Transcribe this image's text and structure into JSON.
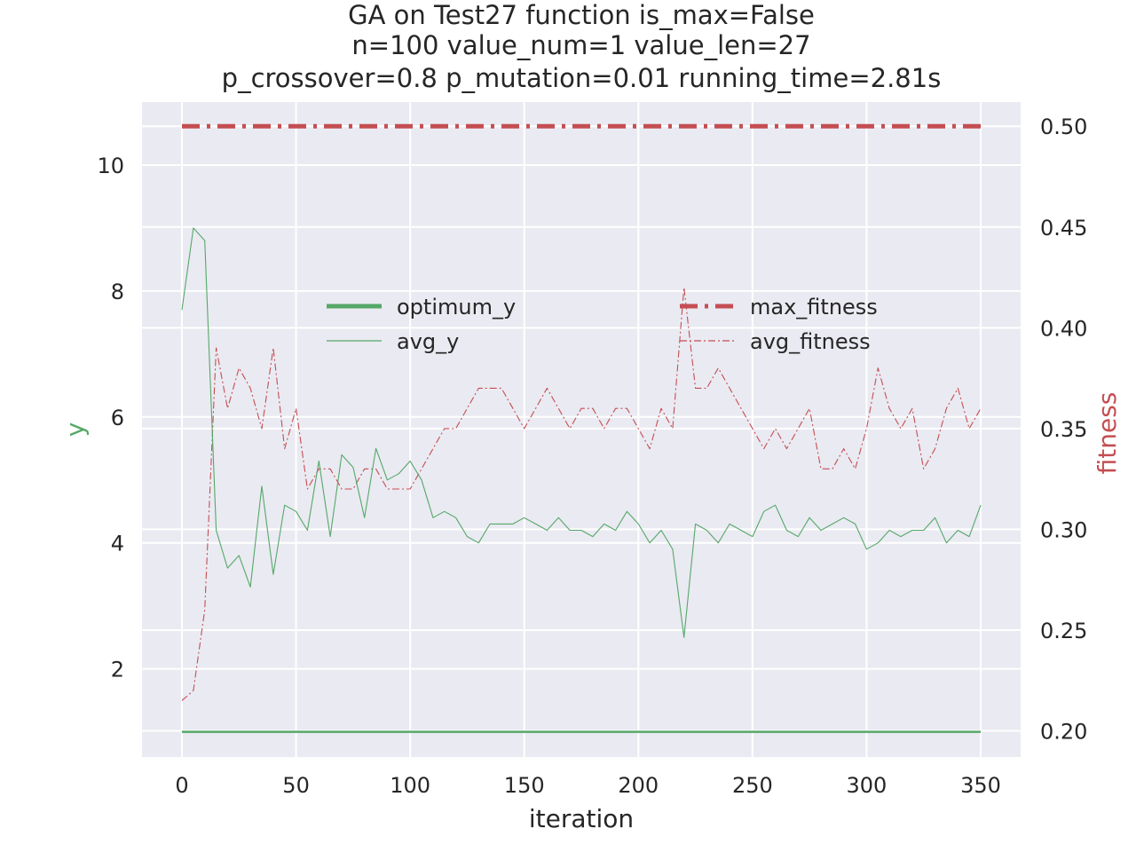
{
  "chart_data": {
    "type": "line",
    "title_lines": [
      "GA on Test27 function  is_max=False",
      "n=100  value_num=1  value_len=27",
      "p_crossover=0.8  p_mutation=0.01 running_time=2.81s"
    ],
    "xlabel": "iteration",
    "ylabel_left": "y",
    "ylabel_right": "fitness",
    "xlim": [
      -17.5,
      367.5
    ],
    "ylim_left": [
      0.6,
      11.0
    ],
    "ylim_right": [
      0.187,
      0.512
    ],
    "x_ticks": [
      "0",
      "50",
      "100",
      "150",
      "200",
      "250",
      "300",
      "350"
    ],
    "y_left_ticks": [
      "2",
      "4",
      "6",
      "8",
      "10"
    ],
    "y_right_ticks": [
      "0.20",
      "0.25",
      "0.30",
      "0.35",
      "0.40",
      "0.45",
      "0.50"
    ],
    "grid": true,
    "legend_left": [
      "optimum_y",
      "avg_y"
    ],
    "legend_right": [
      "max_fitness",
      "avg_fitness"
    ],
    "colors": {
      "green": "#55a868",
      "red": "#c44e52",
      "background": "#eaeaf2"
    },
    "series": [
      {
        "name": "optimum_y",
        "axis": "left",
        "style": "solid-thick",
        "x": [
          0,
          350
        ],
        "y": [
          1.0,
          1.0
        ]
      },
      {
        "name": "avg_y",
        "axis": "left",
        "style": "solid-thin",
        "x_start": 0,
        "x_step": 5,
        "y": [
          7.7,
          9.0,
          8.8,
          4.2,
          3.6,
          3.8,
          3.3,
          4.9,
          3.5,
          4.6,
          4.5,
          4.2,
          5.3,
          4.1,
          5.4,
          5.2,
          4.4,
          5.5,
          5.0,
          5.1,
          5.3,
          5.0,
          4.4,
          4.5,
          4.4,
          4.1,
          4.0,
          4.3,
          4.3,
          4.3,
          4.4,
          4.3,
          4.2,
          4.4,
          4.2,
          4.2,
          4.1,
          4.3,
          4.2,
          4.5,
          4.3,
          4.0,
          4.2,
          3.9,
          2.5,
          4.3,
          4.2,
          4.0,
          4.3,
          4.2,
          4.1,
          4.5,
          4.6,
          4.2,
          4.1,
          4.4,
          4.2,
          4.3,
          4.4,
          4.3,
          3.9,
          4.0,
          4.2,
          4.1,
          4.2,
          4.2,
          4.4,
          4.0,
          4.2,
          4.1,
          4.6
        ]
      },
      {
        "name": "max_fitness",
        "axis": "right",
        "style": "dashdot-thick",
        "x": [
          0,
          350
        ],
        "y": [
          0.5,
          0.5
        ]
      },
      {
        "name": "avg_fitness",
        "axis": "right",
        "style": "dashdot-thin",
        "x_start": 0,
        "x_step": 5,
        "y": [
          0.215,
          0.22,
          0.26,
          0.39,
          0.36,
          0.38,
          0.37,
          0.35,
          0.39,
          0.34,
          0.36,
          0.32,
          0.33,
          0.33,
          0.32,
          0.32,
          0.33,
          0.33,
          0.32,
          0.32,
          0.32,
          0.33,
          0.34,
          0.35,
          0.35,
          0.36,
          0.37,
          0.37,
          0.37,
          0.36,
          0.35,
          0.36,
          0.37,
          0.36,
          0.35,
          0.36,
          0.36,
          0.35,
          0.36,
          0.36,
          0.35,
          0.34,
          0.36,
          0.35,
          0.42,
          0.37,
          0.37,
          0.38,
          0.37,
          0.36,
          0.35,
          0.34,
          0.35,
          0.34,
          0.35,
          0.36,
          0.33,
          0.33,
          0.34,
          0.33,
          0.35,
          0.38,
          0.36,
          0.35,
          0.36,
          0.33,
          0.34,
          0.36,
          0.37,
          0.35,
          0.36
        ]
      }
    ]
  }
}
